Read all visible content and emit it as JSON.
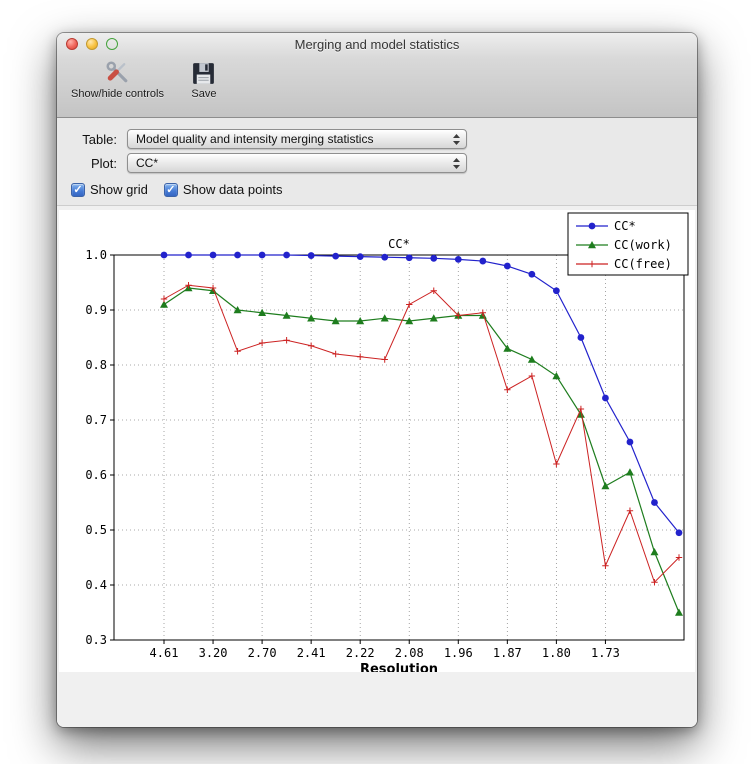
{
  "window": {
    "title": "Merging and model statistics"
  },
  "toolbar": {
    "items": [
      {
        "name": "show-hide-controls",
        "label": "Show/hide controls",
        "icon": "tools-icon"
      },
      {
        "name": "save",
        "label": "Save",
        "icon": "save-icon"
      }
    ]
  },
  "controls": {
    "table_label": "Table:",
    "table_value": "Model quality and intensity merging statistics",
    "plot_label": "Plot:",
    "plot_value": "CC*",
    "check_glyph": "✓",
    "checkboxes": [
      {
        "label": "Show grid",
        "checked": true
      },
      {
        "label": "Show data points",
        "checked": true
      }
    ]
  },
  "chart_data": {
    "type": "line",
    "title": "CC*",
    "xlabel": "Resolution",
    "ylabel": "",
    "ylim": [
      0.3,
      1.0
    ],
    "y_ticks": [
      0.3,
      0.4,
      0.5,
      0.6,
      0.7,
      0.8,
      0.9,
      1.0
    ],
    "x_tick_labels": [
      "4.61",
      "3.20",
      "2.70",
      "2.41",
      "2.22",
      "2.08",
      "1.96",
      "1.87",
      "1.80",
      "1.73"
    ],
    "x_tick_indices": [
      0,
      2,
      4,
      6,
      8,
      10,
      12,
      14,
      16,
      18
    ],
    "grid": true,
    "show_data_points": true,
    "legend_position": "upper right",
    "series": [
      {
        "name": "CC*",
        "color": "#2222cc",
        "marker": "circle",
        "values": [
          1.0,
          1.0,
          1.0,
          1.0,
          1.0,
          1.0,
          0.999,
          0.998,
          0.997,
          0.996,
          0.995,
          0.994,
          0.992,
          0.989,
          0.98,
          0.965,
          0.935,
          0.85,
          0.74,
          0.66,
          0.55,
          0.495
        ]
      },
      {
        "name": "CC(work)",
        "color": "#1e7d1e",
        "marker": "triangle",
        "values": [
          0.91,
          0.94,
          0.935,
          0.9,
          0.895,
          0.89,
          0.885,
          0.88,
          0.88,
          0.885,
          0.88,
          0.885,
          0.89,
          0.89,
          0.83,
          0.81,
          0.78,
          0.71,
          0.58,
          0.605,
          0.46,
          0.35
        ]
      },
      {
        "name": "CC(free)",
        "color": "#cc2222",
        "marker": "plus",
        "values": [
          0.92,
          0.945,
          0.94,
          0.825,
          0.84,
          0.845,
          0.835,
          0.82,
          0.815,
          0.81,
          0.91,
          0.935,
          0.89,
          0.895,
          0.755,
          0.78,
          0.62,
          0.72,
          0.435,
          0.535,
          0.405,
          0.45
        ]
      }
    ]
  }
}
